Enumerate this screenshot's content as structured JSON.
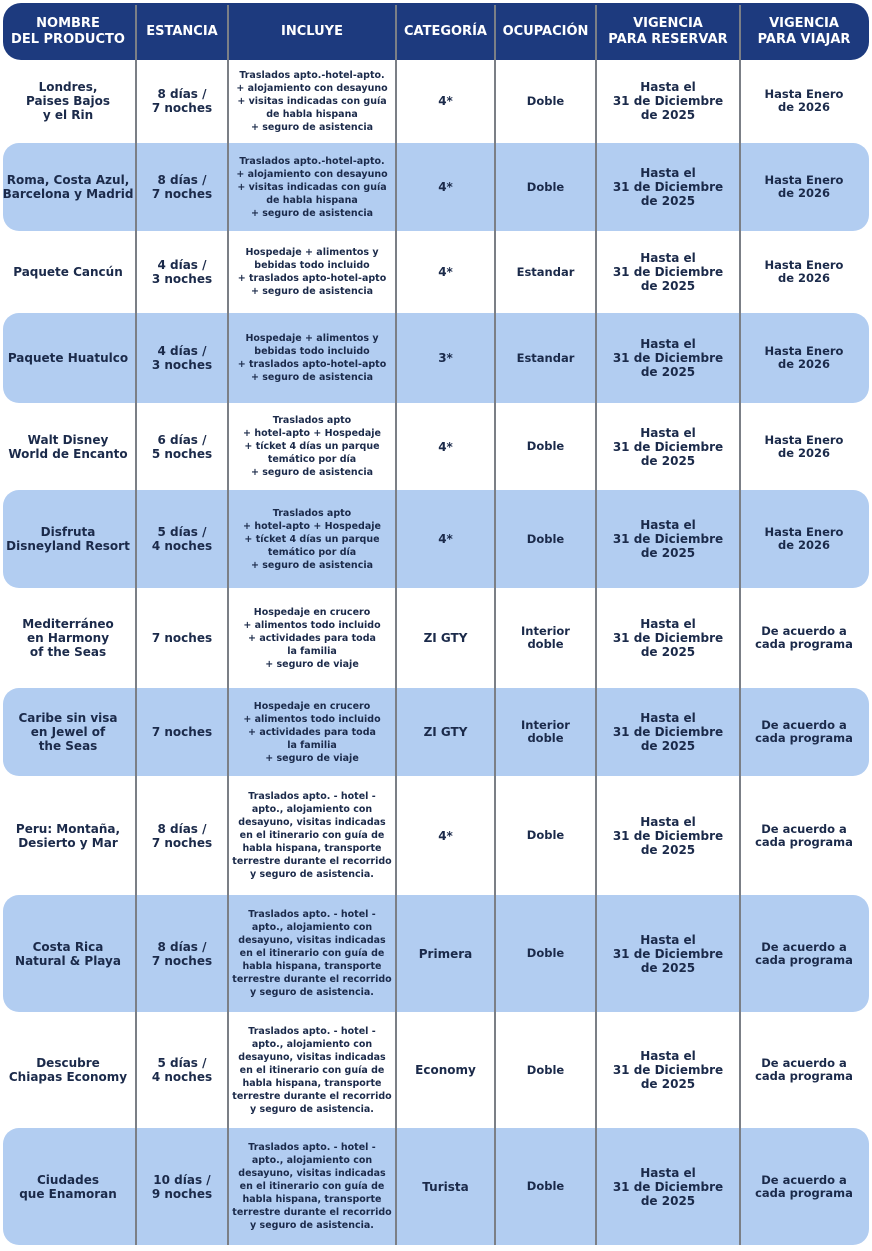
{
  "headers": [
    "NOMBRE\nDEL PRODUCTO",
    "ESTANCIA",
    "INCLUYE",
    "CATEGORÍA",
    "OCUPACIÓN",
    "VIGENCIA\nPARA RESERVAR",
    "VIGENCIA\nPARA VIAJAR"
  ],
  "colors": {
    "header": "#1d3a7e",
    "band": "#b2cdf1",
    "text": "#1b2a4a"
  },
  "rows": [
    {
      "producto": "Londres,\nPaises Bajos\ny el Rin",
      "estancia": "8 días /\n7 noches",
      "incluye": "Traslados apto.-hotel-apto.\n+ alojamiento con desayuno\n+ visitas indicadas con guía\nde habla hispana\n+ seguro de asistencia",
      "categoria": "4*",
      "ocupacion": "Doble",
      "reservar": "Hasta el\n31 de Diciembre\nde 2025",
      "viajar": "Hasta Enero\nde 2026"
    },
    {
      "producto": "Roma, Costa Azul,\nBarcelona y Madrid",
      "estancia": "8 días /\n7 noches",
      "incluye": "Traslados apto.-hotel-apto.\n+ alojamiento con desayuno\n+ visitas indicadas con guía\nde habla hispana\n+ seguro de asistencia",
      "categoria": "4*",
      "ocupacion": "Doble",
      "reservar": "Hasta el\n31 de Diciembre\nde 2025",
      "viajar": "Hasta Enero\nde 2026"
    },
    {
      "producto": "Paquete Cancún",
      "estancia": "4 días /\n3 noches",
      "incluye": "Hospedaje + alimentos y\nbebidas todo incluido\n+ traslados apto-hotel-apto\n+ seguro de asistencia",
      "categoria": "4*",
      "ocupacion": "Estandar",
      "reservar": "Hasta el\n31 de Diciembre\nde 2025",
      "viajar": "Hasta Enero\nde 2026"
    },
    {
      "producto": "Paquete Huatulco",
      "estancia": "4 días /\n3 noches",
      "incluye": "Hospedaje + alimentos y\nbebidas todo incluido\n+ traslados apto-hotel-apto\n+ seguro de asistencia",
      "categoria": "3*",
      "ocupacion": "Estandar",
      "reservar": "Hasta el\n31 de Diciembre\nde 2025",
      "viajar": "Hasta Enero\nde 2026"
    },
    {
      "producto": "Walt Disney\nWorld de Encanto",
      "estancia": "6 días /\n5 noches",
      "incluye": "Traslados apto\n+ hotel-apto + Hospedaje\n+ tícket 4 días un parque\ntemático por día\n+ seguro de asistencia",
      "categoria": "4*",
      "ocupacion": "Doble",
      "reservar": "Hasta el\n31 de Diciembre\nde 2025",
      "viajar": "Hasta Enero\nde 2026"
    },
    {
      "producto": "Disfruta\nDisneyland Resort",
      "estancia": "5 días /\n4 noches",
      "incluye": "Traslados apto\n+ hotel-apto + Hospedaje\n+ tícket 4 días un parque\ntemático por día\n+ seguro de asistencia",
      "categoria": "4*",
      "ocupacion": "Doble",
      "reservar": "Hasta el\n31 de Diciembre\nde 2025",
      "viajar": "Hasta Enero\nde 2026"
    },
    {
      "producto": "Mediterráneo\nen Harmony\nof the Seas",
      "estancia": "7 noches",
      "incluye": "Hospedaje en crucero\n+ alimentos todo incluido\n+ actividades para toda\nla familia\n+ seguro de viaje",
      "categoria": "ZI GTY",
      "ocupacion": "Interior\ndoble",
      "reservar": "Hasta el\n31 de Diciembre\nde 2025",
      "viajar": "De acuerdo a\ncada programa"
    },
    {
      "producto": "Caribe sin visa\nen Jewel of\nthe Seas",
      "estancia": "7 noches",
      "incluye": "Hospedaje en crucero\n+ alimentos todo incluido\n+ actividades para toda\nla familia\n+ seguro de viaje",
      "categoria": "ZI GTY",
      "ocupacion": "Interior\ndoble",
      "reservar": "Hasta el\n31 de Diciembre\nde 2025",
      "viajar": "De acuerdo a\ncada programa"
    },
    {
      "producto": "Peru: Montaña,\nDesierto y Mar",
      "estancia": "8 días /\n7 noches",
      "incluye": "Traslados apto. - hotel -\napto., alojamiento con\ndesayuno, visitas indicadas\nen el itinerario con guía de\nhabla hispana, transporte\nterrestre durante el recorrido\ny seguro de asistencia.",
      "categoria": "4*",
      "ocupacion": "Doble",
      "reservar": "Hasta el\n31 de Diciembre\nde 2025",
      "viajar": "De acuerdo a\ncada programa"
    },
    {
      "producto": "Costa Rica\nNatural & Playa",
      "estancia": "8 días /\n7 noches",
      "incluye": "Traslados apto. - hotel -\napto., alojamiento con\ndesayuno, visitas indicadas\nen el itinerario con guía de\nhabla hispana, transporte\nterrestre durante el recorrido\ny seguro de asistencia.",
      "categoria": "Primera",
      "ocupacion": "Doble",
      "reservar": "Hasta el\n31 de Diciembre\nde 2025",
      "viajar": "De acuerdo a\ncada programa"
    },
    {
      "producto": "Descubre\nChiapas Economy",
      "estancia": "5 días /\n4 noches",
      "incluye": "Traslados apto. - hotel -\napto., alojamiento con\ndesayuno, visitas indicadas\nen el itinerario con guía de\nhabla hispana, transporte\nterrestre durante el recorrido\ny seguro de asistencia.",
      "categoria": "Economy",
      "ocupacion": "Doble",
      "reservar": "Hasta el\n31 de Diciembre\nde 2025",
      "viajar": "De acuerdo a\ncada programa"
    },
    {
      "producto": "Ciudades\nque Enamoran",
      "estancia": "10 días /\n9 noches",
      "incluye": "Traslados apto. - hotel -\napto., alojamiento con\ndesayuno, visitas indicadas\nen el itinerario con guía de\nhabla hispana, transporte\nterrestre durante el recorrido\ny seguro de asistencia.",
      "categoria": "Turista",
      "ocupacion": "Doble",
      "reservar": "Hasta el\n31 de Diciembre\nde 2025",
      "viajar": "De acuerdo a\ncada programa"
    }
  ]
}
